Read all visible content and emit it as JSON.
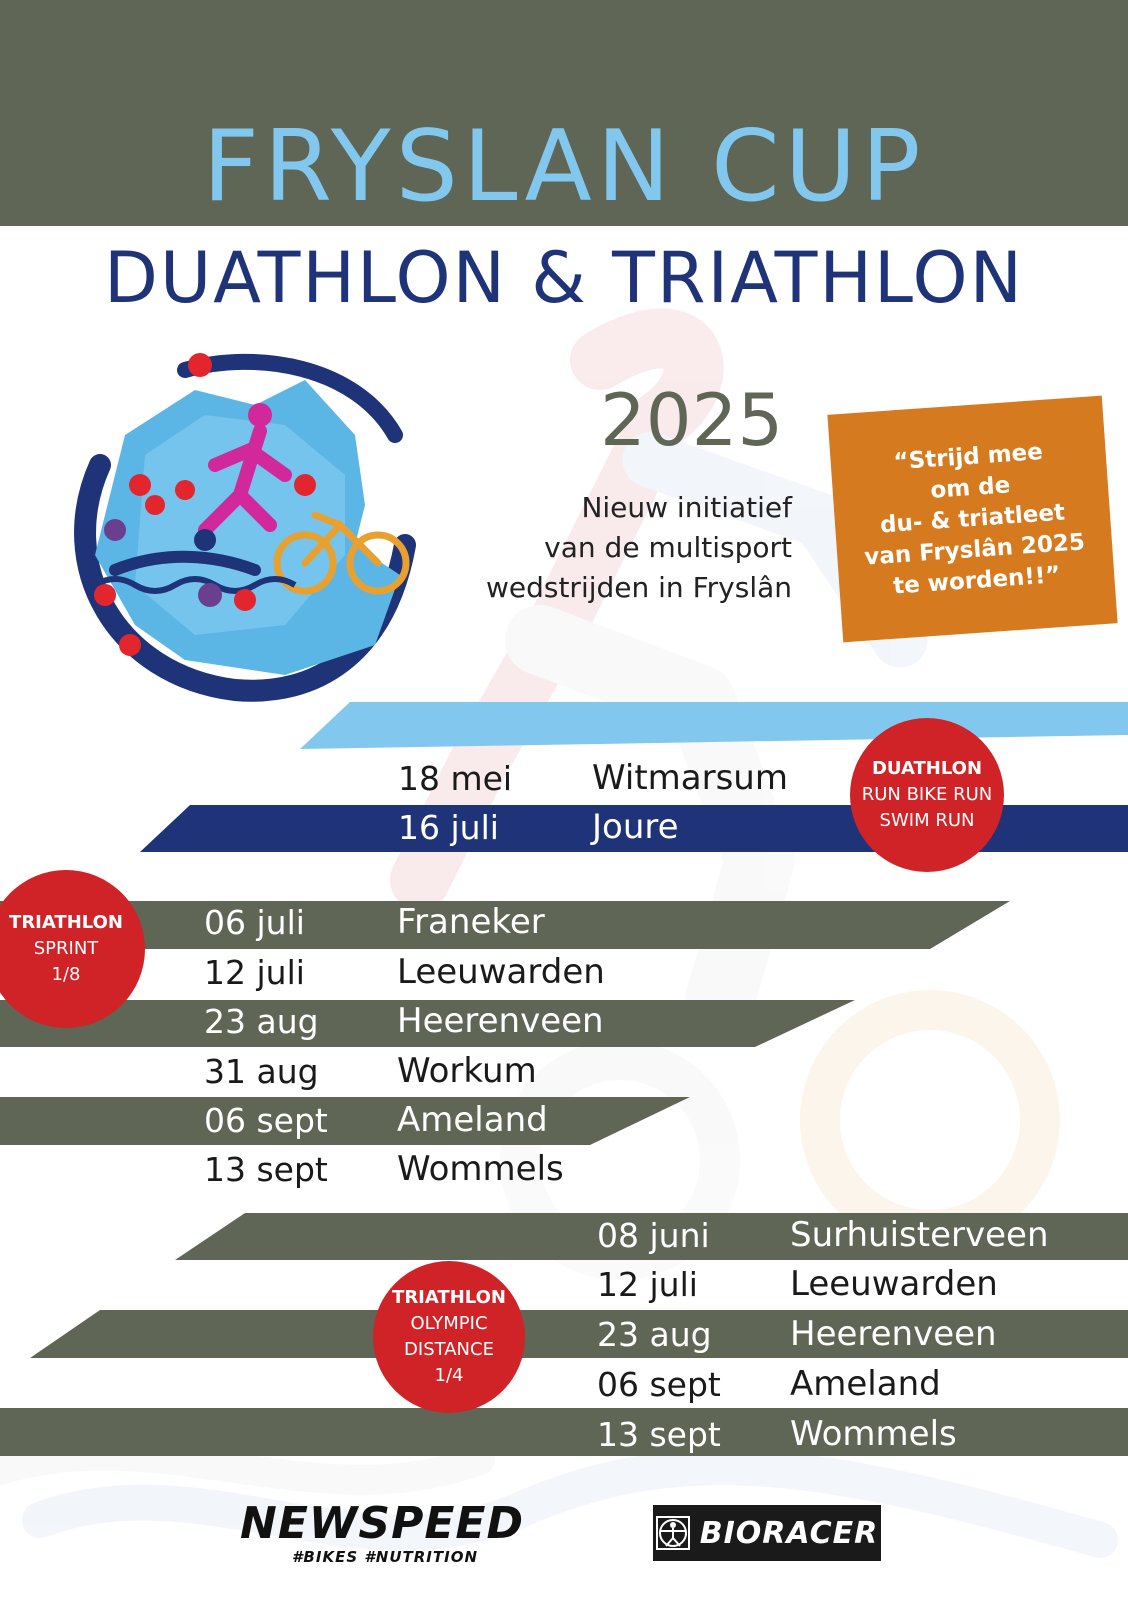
{
  "header": {
    "title": "FRYSLAN CUP",
    "subtitle": "DUATHLON & TRIATHLON"
  },
  "intro": {
    "year": "2025",
    "lines": [
      "Nieuw initiatief",
      "van de multisport",
      "wedstrijden in Fryslân"
    ]
  },
  "quote": {
    "lines": [
      "“Strijd mee",
      "om de",
      "du- & triatleet",
      "van Fryslân 2025",
      "te worden!!”"
    ]
  },
  "badges": {
    "duathlon": {
      "title": "DUATHLON",
      "lines": [
        "RUN BIKE RUN",
        "SWIM RUN"
      ]
    },
    "sprint": {
      "title": "TRIATHLON",
      "lines": [
        "SPRINT",
        "1/8"
      ]
    },
    "olympic": {
      "title": "TRIATHLON",
      "lines": [
        "OLYMPIC",
        "DISTANCE",
        "1/4"
      ]
    }
  },
  "chart_data": {
    "type": "table",
    "duathlon": [
      {
        "date": "18 mei",
        "place": "Witmarsum"
      },
      {
        "date": "16 juli",
        "place": "Joure"
      }
    ],
    "sprint": [
      {
        "date": "06 juli",
        "place": "Franeker"
      },
      {
        "date": "12 juli",
        "place": "Leeuwarden"
      },
      {
        "date": "23 aug",
        "place": "Heerenveen"
      },
      {
        "date": "31 aug",
        "place": "Workum"
      },
      {
        "date": "06 sept",
        "place": "Ameland"
      },
      {
        "date": "13 sept",
        "place": "Wommels"
      }
    ],
    "olympic": [
      {
        "date": "08 juni",
        "place": "Surhuisterveen"
      },
      {
        "date": "12 juli",
        "place": "Leeuwarden"
      },
      {
        "date": "23 aug",
        "place": "Heerenveen"
      },
      {
        "date": "06 sept",
        "place": "Ameland"
      },
      {
        "date": "13 sept",
        "place": "Wommels"
      }
    ]
  },
  "sponsors": {
    "newspeed": "NEWSPEED",
    "newspeed_tag": "#BIKES #NUTRITION",
    "bioracer": "BIORACER"
  },
  "colors": {
    "olive": "#5f6656",
    "light_blue": "#82c8ee",
    "navy": "#1f3378",
    "red": "#cf2327",
    "orange": "#d57a1f"
  }
}
